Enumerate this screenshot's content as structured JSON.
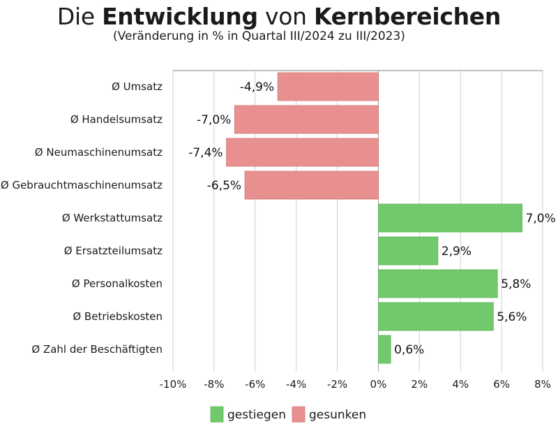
{
  "title": {
    "part1": "Die ",
    "bold1": "Entwicklung",
    "part2": " von ",
    "bold2": "Kernbereichen"
  },
  "subtitle": "(Veränderung in % in Quartal III/2024 zu III/2023)",
  "colors": {
    "positive": "#70c96a",
    "negative": "#e89090",
    "grid": "#cfcfcf",
    "axis": "#9a9a9a"
  },
  "chart_data": {
    "type": "bar",
    "orientation": "horizontal",
    "categories": [
      "Ø Umsatz",
      "Ø Handelsumsatz",
      "Ø Neumaschinenumsatz",
      "Ø Gebrauchtmaschinenumsatz",
      "Ø Werkstattumsatz",
      "Ø Ersatzteilumsatz",
      "Ø Personalkosten",
      "Ø Betriebskosten",
      "Ø Zahl der Beschäftigten"
    ],
    "values": [
      -4.9,
      -7.0,
      -7.4,
      -6.5,
      7.0,
      2.9,
      5.8,
      5.6,
      0.6
    ],
    "value_labels": [
      "-4,9%",
      "-7,0%",
      "-7,4%",
      "-6,5%",
      "7,0%",
      "2,9%",
      "5,8%",
      "5,6%",
      "0,6%"
    ],
    "xlim": [
      -10,
      8
    ],
    "xticks": [
      -10,
      -8,
      -6,
      -4,
      -2,
      0,
      2,
      4,
      6,
      8
    ],
    "xtick_labels": [
      "-10%",
      "-8%",
      "-6%",
      "-4%",
      "-2%",
      "0%",
      "2%",
      "4%",
      "6%",
      "8%"
    ],
    "grid": true,
    "legend": {
      "placement": "bottom-center",
      "entries": [
        {
          "label": "gestiegen",
          "color": "#70c96a"
        },
        {
          "label": "gesunken",
          "color": "#e89090"
        }
      ]
    }
  }
}
